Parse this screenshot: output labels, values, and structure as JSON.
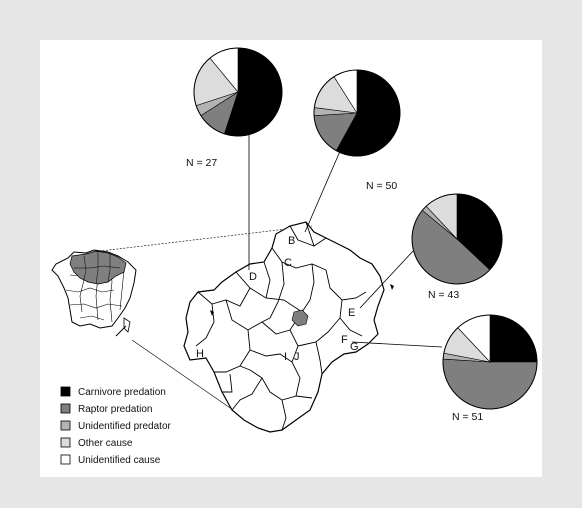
{
  "colors": {
    "carnivore": "#000000",
    "raptor": "#7f7f7f",
    "unidentified_predator": "#b3b3b3",
    "other_cause": "#dcdcdc",
    "unidentified_cause": "#ffffff",
    "background": "#e6e6e6"
  },
  "legend": [
    {
      "key": "carnivore",
      "label": "Carnivore predation"
    },
    {
      "key": "raptor",
      "label": "Raptor predation"
    },
    {
      "key": "unidentified_predator",
      "label": "Unidentified predator"
    },
    {
      "key": "other_cause",
      "label": "Other cause"
    },
    {
      "key": "unidentified_cause",
      "label": "Unidentified cause"
    }
  ],
  "site_labels": [
    "B",
    "C",
    "D",
    "E",
    "F",
    "G",
    "H",
    "I",
    "J"
  ],
  "chart_data": {
    "type": "pie",
    "categories": [
      "Carnivore predation",
      "Raptor predation",
      "Unidentified predator",
      "Other cause",
      "Unidentified cause"
    ],
    "pies": [
      {
        "label": "N = 27",
        "values": [
          0.55,
          0.11,
          0.04,
          0.19,
          0.11
        ]
      },
      {
        "label": "N = 50",
        "values": [
          0.58,
          0.16,
          0.03,
          0.14,
          0.09
        ]
      },
      {
        "label": "N = 43",
        "values": [
          0.37,
          0.49,
          0.02,
          0.12,
          0.0
        ]
      },
      {
        "label": "N = 51",
        "values": [
          0.25,
          0.51,
          0.02,
          0.1,
          0.12
        ]
      }
    ]
  }
}
